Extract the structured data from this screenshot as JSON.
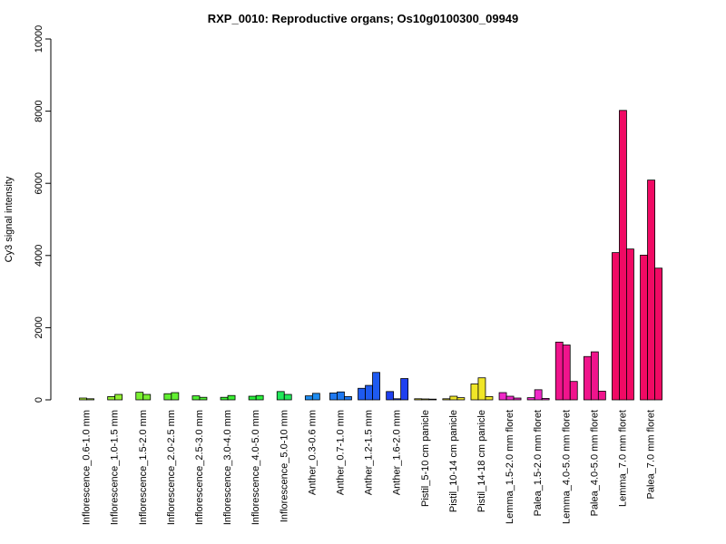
{
  "chart_data": {
    "type": "bar",
    "title": "RXP_0010: Reproductive organs; Os10g0100300_09949",
    "xlabel": "",
    "ylabel": "Cy3 signal intensity",
    "ylim": [
      0,
      10000
    ],
    "yticks": [
      0,
      2000,
      4000,
      6000,
      8000,
      10000
    ],
    "grid": false,
    "legend": "none",
    "groups": [
      {
        "label": "Inflorescence_0.6-1.0 mm",
        "color": "#a8f032",
        "values": [
          50,
          30
        ]
      },
      {
        "label": "Inflorescence_1.0-1.5 mm",
        "color": "#92f032",
        "values": [
          90,
          150
        ]
      },
      {
        "label": "Inflorescence_1.5-2.0 mm",
        "color": "#7af032",
        "values": [
          210,
          150
        ]
      },
      {
        "label": "Inflorescence_2.0-2.5 mm",
        "color": "#62f032",
        "values": [
          170,
          200
        ]
      },
      {
        "label": "Inflorescence_2.5-3.0 mm",
        "color": "#4ef032",
        "values": [
          110,
          70
        ]
      },
      {
        "label": "Inflorescence_3.0-4.0 mm",
        "color": "#3af032",
        "values": [
          70,
          120
        ]
      },
      {
        "label": "Inflorescence_4.0-5.0 mm",
        "color": "#2af03c",
        "values": [
          100,
          120
        ]
      },
      {
        "label": "Inflorescence_5.0-10 mm",
        "color": "#22e85a",
        "values": [
          230,
          150
        ]
      },
      {
        "label": "Anther_0.3-0.6 mm",
        "color": "#1e8cf0",
        "values": [
          110,
          180
        ]
      },
      {
        "label": "Anther_0.7-1.0 mm",
        "color": "#1e78f0",
        "values": [
          190,
          220,
          90
        ]
      },
      {
        "label": "Anther_1.2-1.5 mm",
        "color": "#1e5af0",
        "values": [
          320,
          400,
          760
        ]
      },
      {
        "label": "Anther_1.6-2.0 mm",
        "color": "#1e40f0",
        "values": [
          230,
          30,
          590
        ]
      },
      {
        "label": "Pistil_5-10 cm panicle",
        "color": "#f0e628",
        "values": [
          30,
          25,
          20
        ]
      },
      {
        "label": "Pistil_10-14 cm panicle",
        "color": "#f0e628",
        "values": [
          30,
          100,
          60
        ]
      },
      {
        "label": "Pistil_14-18 cm panicle",
        "color": "#f0e628",
        "values": [
          440,
          610,
          90
        ]
      },
      {
        "label": "Lemma_1.5-2.0 mm floret",
        "color": "#f028c8",
        "values": [
          200,
          100,
          50
        ]
      },
      {
        "label": "Palea_1.5-2.0 mm floret",
        "color": "#f028c8",
        "values": [
          60,
          280,
          40
        ]
      },
      {
        "label": "Lemma_4.0-5.0 mm floret",
        "color": "#f0148c",
        "values": [
          1600,
          1520,
          510
        ]
      },
      {
        "label": "Palea_4.0-5.0 mm floret",
        "color": "#f0148c",
        "values": [
          1200,
          1330,
          240
        ]
      },
      {
        "label": "Lemma_7.0 mm floret",
        "color": "#f00a64",
        "values": [
          4080,
          8020,
          4180
        ]
      },
      {
        "label": "Palea_7.0 mm floret",
        "color": "#f00a64",
        "values": [
          4010,
          6090,
          3650
        ]
      }
    ]
  }
}
